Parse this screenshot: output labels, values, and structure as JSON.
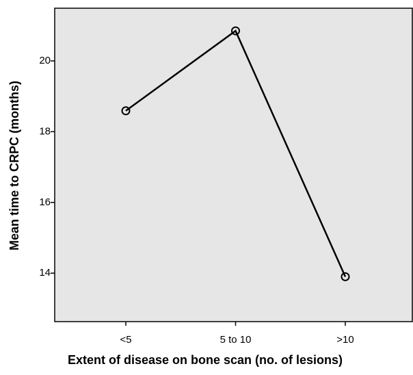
{
  "chart_data": {
    "type": "line",
    "x_label": "Extent of disease on bone scan (no. of lesions)",
    "y_label": "Mean time to CRPC (months)",
    "categories": [
      "<5",
      "5 to 10",
      ">10"
    ],
    "values": [
      18.59,
      20.85,
      13.9
    ],
    "color": "#000000",
    "ylim": [
      12.63,
      21.49
    ],
    "yticks": [
      14,
      16,
      18,
      20
    ],
    "background": "#e6e6e6"
  }
}
